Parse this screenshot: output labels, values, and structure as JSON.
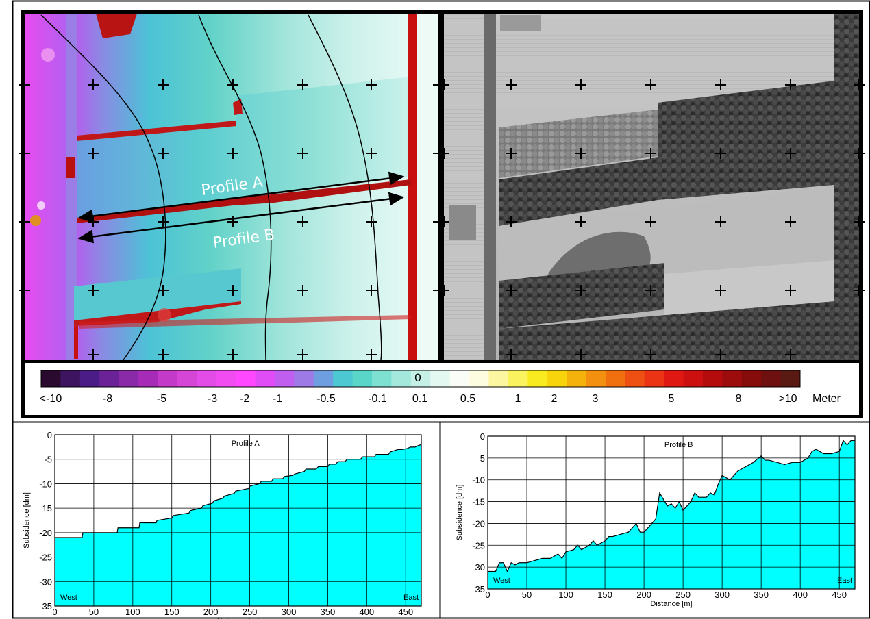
{
  "figure": {
    "colorbar": {
      "zero_label": "0",
      "labels": [
        "<-10",
        "-8",
        "-5",
        "-3",
        "-2",
        "-1",
        "-0.5",
        "-0.1",
        "0.1",
        "0.5",
        "1",
        "2",
        "3",
        "5",
        "8",
        ">10"
      ],
      "unit": "Meter",
      "colors": [
        "#2a0a2e",
        "#3d1460",
        "#4b1b86",
        "#6a2296",
        "#8b2aa8",
        "#a62cb8",
        "#c33ac8",
        "#d545d6",
        "#e34ce6",
        "#f04cf2",
        "#ff48ff",
        "#e04cf6",
        "#c05ef0",
        "#9d7ae6",
        "#6f9ee0",
        "#4cc8d2",
        "#5ad6c8",
        "#7ee0d0",
        "#a4e8dc",
        "#c6f0e6",
        "#e4f8f2",
        "#fafcf8",
        "#fefce0",
        "#fdf6a0",
        "#fbf260",
        "#f8ec20",
        "#f8d40c",
        "#f6b20c",
        "#f49010",
        "#f07010",
        "#ee5014",
        "#ea3414",
        "#e01814",
        "#cc1010",
        "#b40c0c",
        "#9c0c0c",
        "#860c0c",
        "#6e1010",
        "#5a1a14"
      ]
    },
    "map": {
      "profile_a_label": "Profile A",
      "profile_b_label": "Profile B"
    }
  },
  "chart_data": [
    {
      "type": "area",
      "title": "Profile A",
      "xlabel": "Distance [m]",
      "ylabel": "Subsidence [dm]",
      "xlim": [
        0,
        470
      ],
      "ylim": [
        -35,
        0
      ],
      "x_ticks": [
        0,
        50,
        100,
        150,
        200,
        250,
        300,
        350,
        400,
        450
      ],
      "y_ticks": [
        0,
        -5,
        -10,
        -15,
        -20,
        -25,
        -30,
        -35
      ],
      "grid": true,
      "annotations": [
        "West",
        "East"
      ],
      "fill_color": "#00ffff",
      "x": [
        0,
        35,
        36,
        80,
        81,
        108,
        109,
        130,
        131,
        150,
        152,
        172,
        174,
        188,
        190,
        202,
        204,
        215,
        218,
        230,
        232,
        248,
        250,
        262,
        265,
        278,
        280,
        292,
        295,
        305,
        308,
        320,
        322,
        335,
        338,
        350,
        352,
        360,
        363,
        372,
        375,
        392,
        395,
        410,
        412,
        428,
        430,
        440,
        445,
        452,
        456,
        462,
        466,
        470
      ],
      "y": [
        -21,
        -21,
        -20,
        -20,
        -19,
        -19,
        -18,
        -18,
        -17.5,
        -17,
        -16.5,
        -16,
        -15.5,
        -15,
        -14.5,
        -14,
        -13.5,
        -13,
        -12.5,
        -12,
        -11.5,
        -11,
        -10.5,
        -10,
        -9.5,
        -9.5,
        -9,
        -9,
        -8.5,
        -8.3,
        -8,
        -7.5,
        -7,
        -7,
        -6.5,
        -6.5,
        -6,
        -6,
        -5.5,
        -5.5,
        -5,
        -5,
        -4.5,
        -4.5,
        -4,
        -4,
        -3.5,
        -3,
        -3,
        -2.8,
        -2.5,
        -2.5,
        -2.2,
        -2
      ]
    },
    {
      "type": "area",
      "title": "Profile B",
      "xlabel": "Distance [m]",
      "ylabel": "Subsidence [dm]",
      "xlim": [
        0,
        470
      ],
      "ylim": [
        -35,
        0
      ],
      "x_ticks": [
        0,
        50,
        100,
        150,
        200,
        250,
        300,
        350,
        400,
        450
      ],
      "y_ticks": [
        0,
        -5,
        -10,
        -15,
        -20,
        -25,
        -30,
        -35
      ],
      "grid": true,
      "annotations": [
        "West",
        "East"
      ],
      "fill_color": "#00ffff",
      "x": [
        0,
        10,
        15,
        20,
        25,
        30,
        35,
        40,
        50,
        60,
        70,
        80,
        90,
        95,
        100,
        110,
        115,
        120,
        130,
        135,
        140,
        150,
        155,
        160,
        170,
        180,
        190,
        195,
        200,
        205,
        210,
        215,
        220,
        225,
        230,
        235,
        240,
        245,
        250,
        255,
        260,
        265,
        270,
        280,
        285,
        290,
        295,
        300,
        305,
        310,
        320,
        330,
        335,
        340,
        350,
        355,
        360,
        370,
        380,
        390,
        400,
        410,
        415,
        420,
        430,
        440,
        450,
        455,
        460,
        465,
        470
      ],
      "y": [
        -31,
        -31,
        -29,
        -29,
        -31,
        -29,
        -29.5,
        -29,
        -29,
        -28.5,
        -28,
        -28,
        -27,
        -28,
        -26.5,
        -26,
        -25,
        -26,
        -25,
        -24,
        -25,
        -24,
        -23,
        -23,
        -22.5,
        -22,
        -20,
        -22,
        -22,
        -21,
        -20,
        -19,
        -13,
        -14.5,
        -16,
        -15.5,
        -16.5,
        -15,
        -17,
        -16,
        -15,
        -13,
        -14,
        -14,
        -13,
        -13.5,
        -11,
        -9,
        -9.5,
        -10,
        -8,
        -7,
        -6.5,
        -6,
        -4.5,
        -5.5,
        -5.5,
        -6,
        -6.5,
        -6,
        -6,
        -5,
        -3.5,
        -3,
        -4,
        -4,
        -3.5,
        -1,
        -2,
        -1,
        -1
      ]
    }
  ]
}
